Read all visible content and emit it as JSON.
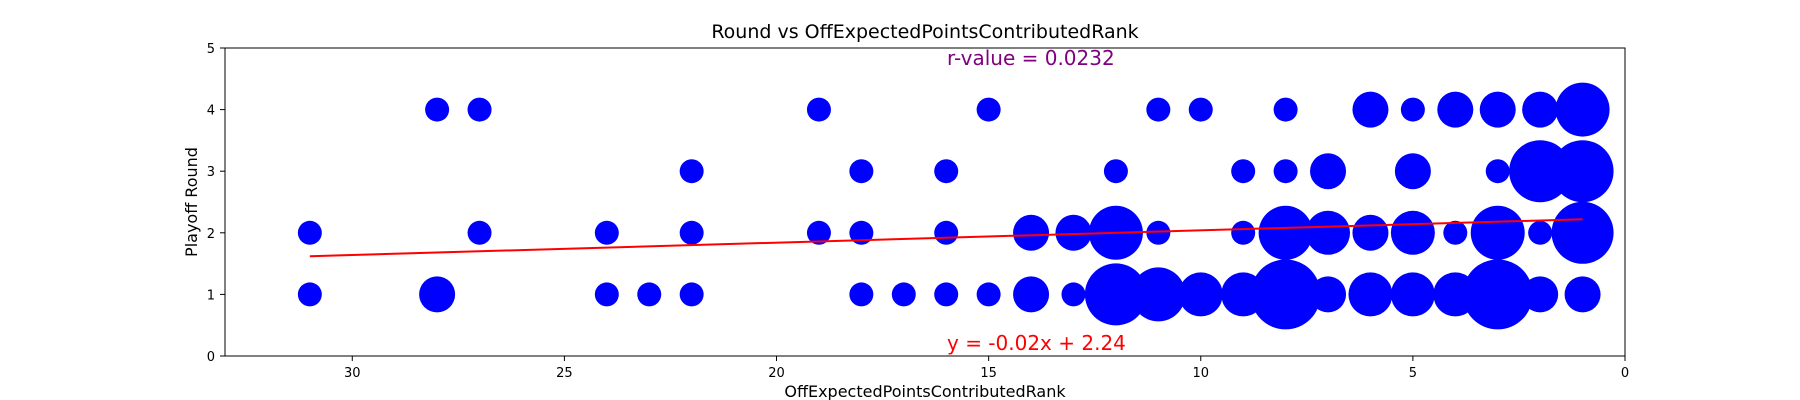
{
  "chart_data": {
    "type": "scatter",
    "title": "Round vs OffExpectedPointsContributedRank",
    "xlabel": "OffExpectedPointsContributedRank",
    "ylabel": "Playoff Round",
    "xlim": [
      33,
      0
    ],
    "ylim": [
      0,
      5
    ],
    "x_inverted": true,
    "xticks": [
      30,
      25,
      20,
      15,
      10,
      5,
      0
    ],
    "yticks": [
      0,
      1,
      2,
      3,
      4,
      5
    ],
    "grid": false,
    "point_color": "#0000ff",
    "fit_color": "#ff0000",
    "rvalue_color": "#800080",
    "rvalue_text": "r-value = 0.0232",
    "equation_text": "y = -0.02x + 2.24",
    "fit": {
      "slope": -0.02,
      "intercept": 2.24,
      "x_range": [
        31,
        1
      ]
    },
    "points": [
      {
        "x": 31,
        "y": 1,
        "size": 1
      },
      {
        "x": 28,
        "y": 1,
        "size": 2
      },
      {
        "x": 24,
        "y": 1,
        "size": 1
      },
      {
        "x": 23,
        "y": 1,
        "size": 1
      },
      {
        "x": 22,
        "y": 1,
        "size": 1
      },
      {
        "x": 18,
        "y": 1,
        "size": 1
      },
      {
        "x": 17,
        "y": 1,
        "size": 1
      },
      {
        "x": 16,
        "y": 1,
        "size": 1
      },
      {
        "x": 15,
        "y": 1,
        "size": 1
      },
      {
        "x": 14,
        "y": 1,
        "size": 2
      },
      {
        "x": 13,
        "y": 1,
        "size": 1
      },
      {
        "x": 12,
        "y": 1,
        "size": 5
      },
      {
        "x": 11,
        "y": 1,
        "size": 4
      },
      {
        "x": 10,
        "y": 1,
        "size": 3
      },
      {
        "x": 9,
        "y": 1,
        "size": 3
      },
      {
        "x": 8,
        "y": 1,
        "size": 6
      },
      {
        "x": 7,
        "y": 1,
        "size": 2
      },
      {
        "x": 6,
        "y": 1,
        "size": 3
      },
      {
        "x": 5,
        "y": 1,
        "size": 3
      },
      {
        "x": 4,
        "y": 1,
        "size": 3
      },
      {
        "x": 3,
        "y": 1,
        "size": 6
      },
      {
        "x": 2,
        "y": 1,
        "size": 2
      },
      {
        "x": 1,
        "y": 1,
        "size": 2
      },
      {
        "x": 31,
        "y": 2,
        "size": 1
      },
      {
        "x": 27,
        "y": 2,
        "size": 1
      },
      {
        "x": 24,
        "y": 2,
        "size": 1
      },
      {
        "x": 22,
        "y": 2,
        "size": 1
      },
      {
        "x": 19,
        "y": 2,
        "size": 1
      },
      {
        "x": 18,
        "y": 2,
        "size": 1
      },
      {
        "x": 16,
        "y": 2,
        "size": 1
      },
      {
        "x": 14,
        "y": 2,
        "size": 2
      },
      {
        "x": 13,
        "y": 2,
        "size": 2
      },
      {
        "x": 12,
        "y": 2,
        "size": 4
      },
      {
        "x": 11,
        "y": 2,
        "size": 1
      },
      {
        "x": 9,
        "y": 2,
        "size": 1
      },
      {
        "x": 8,
        "y": 2,
        "size": 4
      },
      {
        "x": 7,
        "y": 2,
        "size": 3
      },
      {
        "x": 6,
        "y": 2,
        "size": 2
      },
      {
        "x": 5,
        "y": 2,
        "size": 3
      },
      {
        "x": 4,
        "y": 2,
        "size": 1
      },
      {
        "x": 3,
        "y": 2,
        "size": 4
      },
      {
        "x": 2,
        "y": 2,
        "size": 1
      },
      {
        "x": 1,
        "y": 2,
        "size": 5
      },
      {
        "x": 22,
        "y": 3,
        "size": 1
      },
      {
        "x": 18,
        "y": 3,
        "size": 1
      },
      {
        "x": 16,
        "y": 3,
        "size": 1
      },
      {
        "x": 12,
        "y": 3,
        "size": 1
      },
      {
        "x": 9,
        "y": 3,
        "size": 1
      },
      {
        "x": 8,
        "y": 3,
        "size": 1
      },
      {
        "x": 7,
        "y": 3,
        "size": 2
      },
      {
        "x": 5,
        "y": 3,
        "size": 2
      },
      {
        "x": 3,
        "y": 3,
        "size": 1
      },
      {
        "x": 2,
        "y": 3,
        "size": 5
      },
      {
        "x": 1,
        "y": 3,
        "size": 5
      },
      {
        "x": 28,
        "y": 4,
        "size": 1
      },
      {
        "x": 27,
        "y": 4,
        "size": 1
      },
      {
        "x": 19,
        "y": 4,
        "size": 1
      },
      {
        "x": 15,
        "y": 4,
        "size": 1
      },
      {
        "x": 11,
        "y": 4,
        "size": 1
      },
      {
        "x": 10,
        "y": 4,
        "size": 1
      },
      {
        "x": 8,
        "y": 4,
        "size": 1
      },
      {
        "x": 6,
        "y": 4,
        "size": 2
      },
      {
        "x": 5,
        "y": 4,
        "size": 1
      },
      {
        "x": 4,
        "y": 4,
        "size": 2
      },
      {
        "x": 3,
        "y": 4,
        "size": 2
      },
      {
        "x": 2,
        "y": 4,
        "size": 2
      },
      {
        "x": 1,
        "y": 4,
        "size": 4
      }
    ]
  }
}
